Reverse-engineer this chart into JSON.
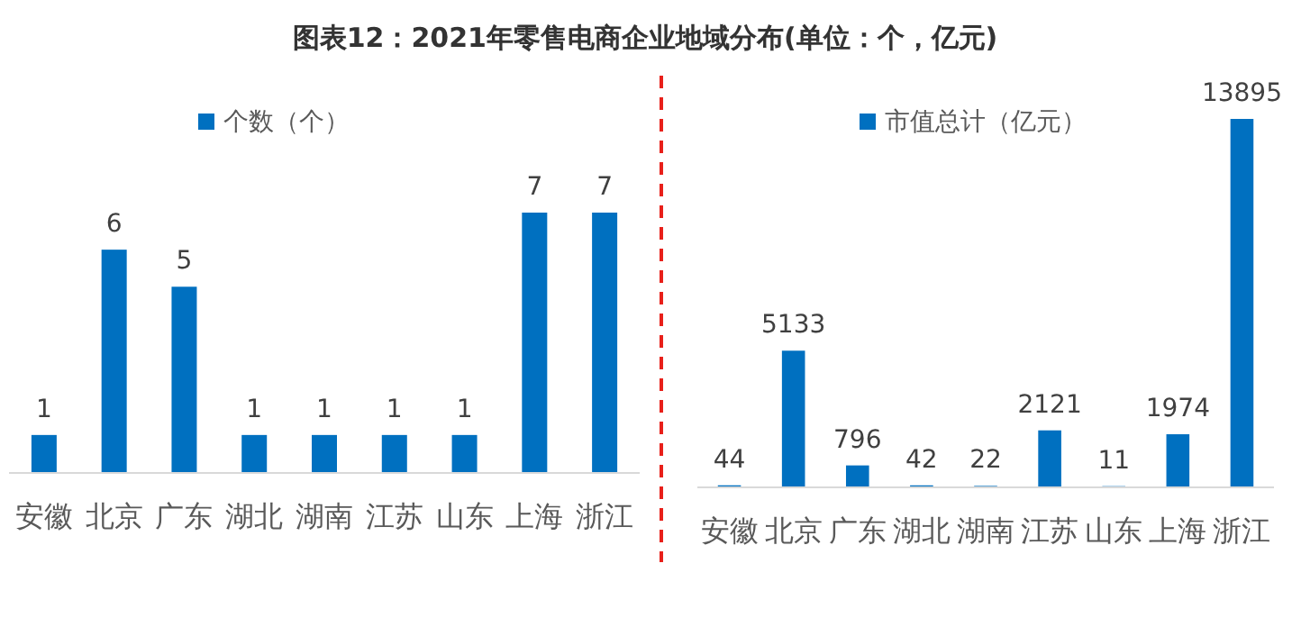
{
  "chart_data": [
    {
      "type": "bar",
      "title": "图表12：2021年零售电商企业地域分布(单位：个，亿元)",
      "categories": [
        "安徽",
        "北京",
        "广东",
        "湖北",
        "湖南",
        "江苏",
        "山东",
        "上海",
        "浙江"
      ],
      "data_labels": true,
      "legend": "top",
      "series": [
        {
          "name": "个数（个）",
          "color": "#0070c0",
          "values": [
            1,
            6,
            5,
            1,
            1,
            1,
            1,
            7,
            7
          ]
        }
      ]
    },
    {
      "type": "bar",
      "categories": [
        "安徽",
        "北京",
        "广东",
        "湖北",
        "湖南",
        "江苏",
        "山东",
        "上海",
        "浙江"
      ],
      "data_labels": true,
      "legend": "top",
      "series": [
        {
          "name": "市值总计（亿元）",
          "color": "#0070c0",
          "values": [
            44,
            5133,
            796,
            42,
            22,
            2121,
            11,
            1974,
            13895
          ]
        }
      ]
    }
  ]
}
